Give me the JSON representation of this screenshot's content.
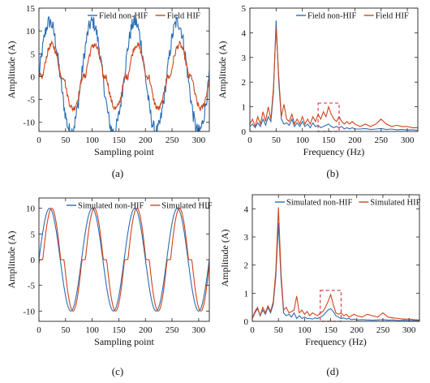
{
  "figure": {
    "captions": [
      "(a)",
      "(b)",
      "(c)",
      "(d)"
    ]
  },
  "colors": {
    "blue": "#2a6db5",
    "red": "#d0451b",
    "box": "#d9404a"
  },
  "chart_data": [
    {
      "id": "a",
      "type": "line",
      "caption": "(a)",
      "xlabel": "Sampling point",
      "ylabel": "Amplitude (A)",
      "xlim": [
        0,
        320
      ],
      "ylim": [
        -12,
        15
      ],
      "xticks": [
        0,
        50,
        100,
        150,
        200,
        250,
        300
      ],
      "yticks": [
        -10,
        -5,
        0,
        5,
        10,
        15
      ],
      "legend": "top-right",
      "series": [
        {
          "name": "Field non-HIF",
          "color": "#2a6db5",
          "amplitude": 12,
          "period": 80,
          "phase": 0,
          "shape": "sine",
          "noise": 1.6
        },
        {
          "name": "Field HIF",
          "color": "#d0451b",
          "amplitude": 7,
          "period": 80,
          "phase": 4,
          "shape": "shoulder",
          "noise": 0.7
        }
      ]
    },
    {
      "id": "b",
      "type": "line",
      "caption": "(b)",
      "xlabel": "Frequency (Hz)",
      "ylabel": "Amplitude (A)",
      "xlim": [
        0,
        320
      ],
      "ylim": [
        0,
        5
      ],
      "xticks": [
        0,
        50,
        100,
        150,
        200,
        250,
        300
      ],
      "yticks": [
        0,
        1,
        2,
        3,
        4,
        5
      ],
      "legend": "top-right",
      "highlight": {
        "x": [
          130,
          170
        ],
        "y": [
          0,
          1.15
        ]
      },
      "series": [
        {
          "name": "Field non-HIF",
          "color": "#2a6db5",
          "x": [
            0,
            5,
            10,
            15,
            20,
            25,
            30,
            35,
            40,
            45,
            50,
            55,
            60,
            65,
            70,
            75,
            80,
            85,
            90,
            95,
            100,
            105,
            110,
            115,
            120,
            125,
            130,
            135,
            140,
            145,
            150,
            155,
            160,
            165,
            170,
            175,
            180,
            185,
            190,
            195,
            200,
            210,
            220,
            230,
            240,
            250,
            260,
            270,
            280,
            290,
            300,
            310,
            320
          ],
          "y": [
            0.2,
            0.3,
            0.15,
            0.35,
            0.2,
            0.5,
            0.25,
            0.6,
            0.4,
            1.6,
            4.5,
            2.0,
            0.5,
            0.3,
            0.35,
            0.25,
            0.5,
            0.2,
            0.35,
            0.2,
            0.4,
            0.2,
            0.3,
            0.15,
            0.35,
            0.2,
            0.25,
            0.15,
            0.2,
            0.25,
            0.3,
            0.2,
            0.15,
            0.2,
            0.15,
            0.2,
            0.1,
            0.15,
            0.1,
            0.15,
            0.1,
            0.1,
            0.12,
            0.08,
            0.1,
            0.12,
            0.08,
            0.1,
            0.07,
            0.08,
            0.06,
            0.07,
            0.05
          ]
        },
        {
          "name": "Field HIF",
          "color": "#d0451b",
          "x": [
            0,
            5,
            10,
            15,
            20,
            25,
            30,
            35,
            40,
            45,
            50,
            55,
            60,
            65,
            70,
            75,
            80,
            85,
            90,
            95,
            100,
            105,
            110,
            115,
            120,
            125,
            130,
            135,
            140,
            145,
            150,
            155,
            160,
            165,
            170,
            175,
            180,
            185,
            190,
            195,
            200,
            210,
            220,
            230,
            240,
            250,
            260,
            270,
            280,
            290,
            300,
            310,
            320
          ],
          "y": [
            0.3,
            0.5,
            0.2,
            0.6,
            0.3,
            0.8,
            0.4,
            1.0,
            0.5,
            1.8,
            4.2,
            2.2,
            0.6,
            1.1,
            0.5,
            0.4,
            0.7,
            0.3,
            0.5,
            0.3,
            0.6,
            0.3,
            0.5,
            0.3,
            0.6,
            0.4,
            0.7,
            0.5,
            0.8,
            0.6,
            1.0,
            0.7,
            0.5,
            0.4,
            0.6,
            0.4,
            0.3,
            0.4,
            0.3,
            0.4,
            0.3,
            0.2,
            0.3,
            0.2,
            0.3,
            0.5,
            0.3,
            0.2,
            0.25,
            0.2,
            0.2,
            0.15,
            0.15
          ]
        }
      ]
    },
    {
      "id": "c",
      "type": "line",
      "caption": "(c)",
      "xlabel": "Sampling point",
      "ylabel": "Amplitude (A)",
      "xlim": [
        0,
        320
      ],
      "ylim": [
        -12,
        12
      ],
      "xticks": [
        0,
        50,
        100,
        150,
        200,
        250,
        300
      ],
      "yticks": [
        -10,
        -5,
        0,
        5,
        10
      ],
      "legend": "top-center",
      "series": [
        {
          "name": "Simulated non-HIF",
          "color": "#2a6db5",
          "amplitude": 10,
          "period": 80,
          "phase": 0,
          "shape": "sine",
          "noise": 0
        },
        {
          "name": "Simulated HIF",
          "color": "#d0451b",
          "amplitude": 10,
          "period": 80,
          "phase": 4,
          "shape": "shoulder",
          "noise": 0
        }
      ]
    },
    {
      "id": "d",
      "type": "line",
      "caption": "(d)",
      "xlabel": "Frequency (Hz)",
      "ylabel": "Amplitude (A)",
      "xlim": [
        0,
        320
      ],
      "ylim": [
        0,
        4.5
      ],
      "xticks": [
        0,
        50,
        100,
        150,
        200,
        250,
        300
      ],
      "yticks": [
        0,
        1,
        2,
        3,
        4
      ],
      "legend": "top-right",
      "highlight": {
        "x": [
          130,
          170
        ],
        "y": [
          0,
          1.1
        ]
      },
      "series": [
        {
          "name": "Simulated non-HIF",
          "color": "#2a6db5",
          "x": [
            0,
            5,
            10,
            15,
            20,
            25,
            30,
            35,
            40,
            45,
            50,
            55,
            60,
            65,
            70,
            75,
            80,
            85,
            90,
            95,
            100,
            105,
            110,
            115,
            120,
            125,
            130,
            135,
            140,
            145,
            150,
            155,
            160,
            165,
            170,
            175,
            180,
            185,
            190,
            195,
            200,
            210,
            220,
            230,
            240,
            250,
            260,
            270,
            280,
            290,
            300,
            310,
            320
          ],
          "y": [
            0.1,
            0.3,
            0.45,
            0.2,
            0.4,
            0.25,
            0.5,
            0.3,
            0.6,
            1.6,
            3.5,
            1.5,
            0.3,
            0.2,
            0.25,
            0.15,
            0.3,
            0.1,
            0.2,
            0.1,
            0.15,
            0.1,
            0.1,
            0.08,
            0.12,
            0.1,
            0.15,
            0.2,
            0.3,
            0.4,
            0.45,
            0.35,
            0.2,
            0.15,
            0.1,
            0.12,
            0.08,
            0.1,
            0.06,
            0.08,
            0.05,
            0.06,
            0.05,
            0.04,
            0.05,
            0.06,
            0.04,
            0.05,
            0.03,
            0.04,
            0.03,
            0.03,
            0.02
          ]
        },
        {
          "name": "Simulated HIF",
          "color": "#d0451b",
          "x": [
            0,
            5,
            10,
            15,
            20,
            25,
            30,
            35,
            40,
            45,
            50,
            55,
            60,
            65,
            70,
            75,
            80,
            85,
            90,
            95,
            100,
            105,
            110,
            115,
            120,
            125,
            130,
            135,
            140,
            145,
            150,
            155,
            160,
            165,
            170,
            175,
            180,
            185,
            190,
            195,
            200,
            210,
            220,
            230,
            240,
            250,
            260,
            270,
            280,
            290,
            300,
            310,
            320
          ],
          "y": [
            0.1,
            0.35,
            0.5,
            0.2,
            0.5,
            0.3,
            0.55,
            0.35,
            0.7,
            1.8,
            4.05,
            1.7,
            0.4,
            0.5,
            0.3,
            0.35,
            0.4,
            0.9,
            0.3,
            0.4,
            0.25,
            0.35,
            0.2,
            0.3,
            0.25,
            0.2,
            0.3,
            0.35,
            0.5,
            0.7,
            0.95,
            0.6,
            0.3,
            0.25,
            0.3,
            0.2,
            0.25,
            0.15,
            0.2,
            0.25,
            0.2,
            0.15,
            0.25,
            0.2,
            0.15,
            0.3,
            0.15,
            0.12,
            0.1,
            0.08,
            0.08,
            0.06,
            0.05
          ]
        }
      ]
    }
  ]
}
